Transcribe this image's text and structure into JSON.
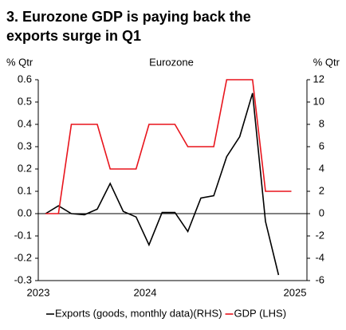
{
  "chart_data": {
    "type": "line",
    "title": "3. Eurozone GDP is paying back the exports surge in Q1",
    "subtitle": "Eurozone",
    "y_label": "% Qtr",
    "y2_label": "% Qtr",
    "x": [
      2023.667,
      2023.75,
      2023.833,
      2023.917,
      2024,
      2024.083,
      2024.167,
      2024.25,
      2024.333,
      2024.417,
      2024.5,
      2024.583,
      2024.667,
      2024.75,
      2024.833,
      2024.917,
      2025,
      2025.083,
      2025.167,
      2025.25
    ],
    "xlim": [
      2023.62,
      2025.35
    ],
    "xticks": [
      2023,
      2024,
      2025
    ],
    "ylim": [
      -0.3,
      0.6
    ],
    "yticks": [
      -0.3,
      -0.2,
      -0.1,
      {
        "value": 0,
        "label": "0.0"
      },
      0.1,
      0.2,
      0.3,
      0.4,
      0.5,
      0.6
    ],
    "y2lim": [
      -6,
      12
    ],
    "y2ticks": [
      -6,
      -4,
      -2,
      0,
      2,
      4,
      6,
      8,
      10,
      12
    ],
    "series": [
      {
        "name": "Exports (goods, monthly data)(RHS)",
        "color": "#000000",
        "axis": "y2",
        "values": [
          0,
          0.7,
          0,
          -0.1,
          0.4,
          2.7,
          0.2,
          -0.3,
          -2.8,
          0.1,
          0.1,
          -1.6,
          1.4,
          1.6,
          5.1,
          6.9,
          10.8,
          -0.7,
          -5.5,
          null
        ]
      },
      {
        "name": "GDP (LHS)",
        "color": "#e8141c",
        "values": [
          0,
          0,
          0.4,
          0.4,
          0.4,
          0.2,
          0.2,
          0.2,
          0.4,
          0.4,
          0.4,
          0.3,
          0.3,
          0.3,
          0.6,
          0.6,
          0.6,
          0.1,
          0.1,
          0.1
        ]
      }
    ],
    "legend": "bottom"
  }
}
